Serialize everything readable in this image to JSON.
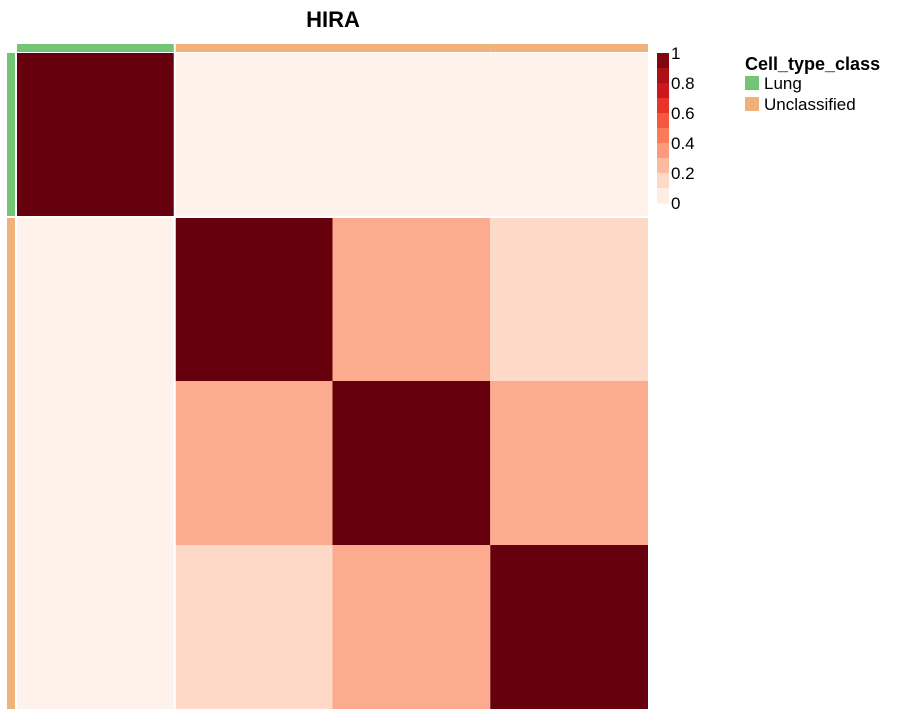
{
  "chart_data": {
    "type": "heatmap",
    "title": "HIRA",
    "row_groups": [
      "Lung",
      "Unclassified",
      "Unclassified",
      "Unclassified"
    ],
    "col_groups": [
      "Lung",
      "Unclassified",
      "Unclassified",
      "Unclassified"
    ],
    "matrix": [
      [
        1.0,
        0.02,
        0.02,
        0.02
      ],
      [
        0.02,
        1.0,
        0.3,
        0.15
      ],
      [
        0.02,
        0.3,
        1.0,
        0.3
      ],
      [
        0.02,
        0.15,
        0.3,
        1.0
      ]
    ],
    "color_scale": {
      "range": [
        0,
        1
      ],
      "ticks": [
        "1",
        "0.8",
        "0.6",
        "0.4",
        "0.2",
        "0"
      ],
      "colors": [
        "#FFF5F0",
        "#FEE0D2",
        "#FCBBA1",
        "#FC9272",
        "#FB6A4A",
        "#EF3B2C",
        "#CB181D",
        "#A50F15",
        "#67000D"
      ]
    },
    "annotation_legend": {
      "title": "Cell_type_class",
      "items": [
        {
          "label": "Lung",
          "color": "#74C476"
        },
        {
          "label": "Unclassified",
          "color": "#F0B27A"
        }
      ]
    }
  }
}
